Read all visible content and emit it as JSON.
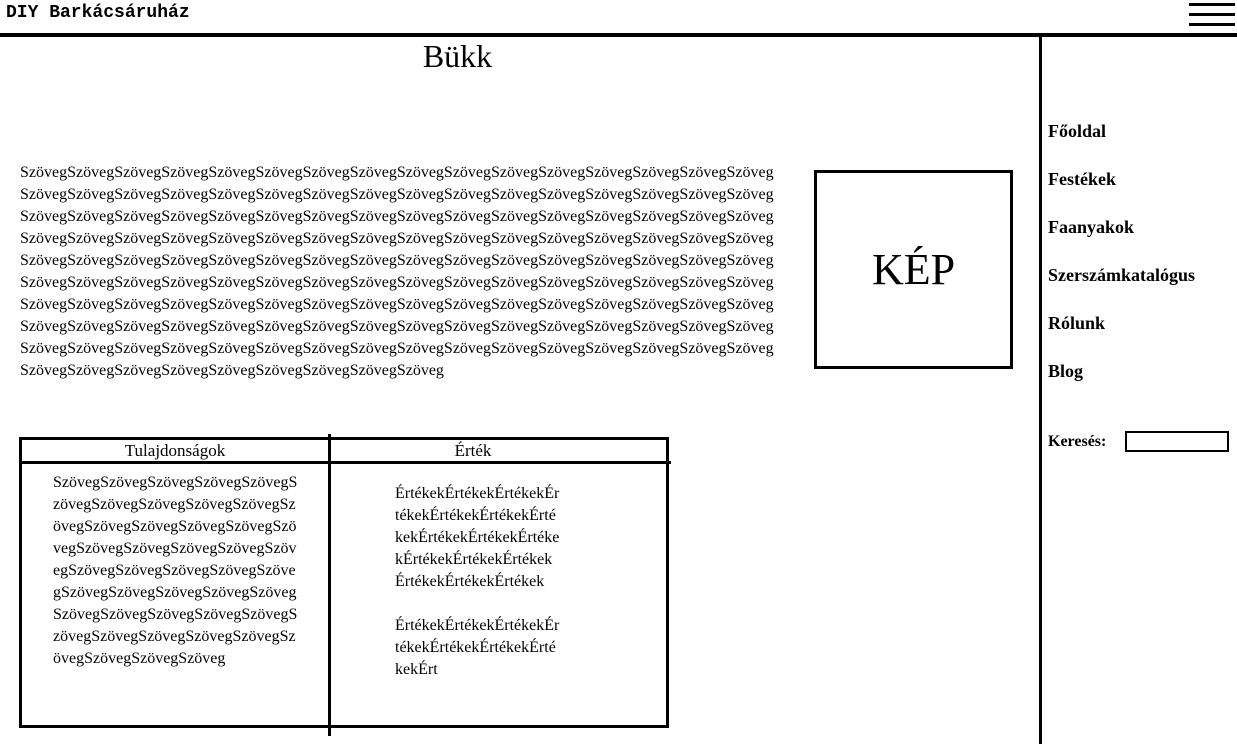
{
  "header": {
    "site_title": "DIY Barkácsáruház"
  },
  "main": {
    "title": "Bükk",
    "body_text": "SzövegSzövegSzövegSzövegSzövegSzövegSzövegSzövegSzövegSzövegSzövegSzövegSzövegSzövegSzövegSzövegSzövegSzövegSzövegSzövegSzövegSzövegSzövegSzövegSzövegSzövegSzövegSzövegSzövegSzövegSzövegSzövegSzövegSzövegSzövegSzövegSzövegSzövegSzövegSzövegSzövegSzövegSzövegSzövegSzövegSzövegSzövegSzövegSzövegSzövegSzövegSzövegSzövegSzövegSzövegSzövegSzövegSzövegSzövegSzövegSzövegSzövegSzövegSzövegSzövegSzövegSzövegSzövegSzövegSzövegSzövegSzövegSzövegSzövegSzövegSzövegSzövegSzövegSzövegSzövegSzövegSzövegSzövegSzövegSzövegSzövegSzövegSzövegSzövegSzövegSzövegSzövegSzövegSzövegSzövegSzövegSzövegSzövegSzövegSzövegSzövegSzövegSzövegSzövegSzövegSzövegSzövegSzövegSzövegSzövegSzövegSzövegSzövegSzövegSzövegSzövegSzövegSzövegSzövegSzövegSzövegSzövegSzövegSzövegSzövegSzövegSzövegSzövegSzövegSzövegSzövegSzövegSzövegSzövegSzövegSzövegSzövegSzövegSzövegSzövegSzövegSzövegSzövegSzövegSzövegSzövegSzövegSzövegSzövegSzövegSzövegSzövegSzöveg",
    "image_placeholder": "KÉP"
  },
  "table": {
    "headers": [
      "Tulajdonságok",
      "Érték"
    ],
    "cell_left": "SzövegSzövegSzövegSzövegSzövegSzövegSzövegSzövegSzövegSzövegSzövegSzövegSzövegSzövegSzövegSzövegSzövegSzövegSzövegSzövegSzövegSzövegSzövegSzövegSzövegSzövegSzövegSzövegSzövegSzövegSzövegSzövegSzövegSzövegSzövegSzövegSzövegSzövegSzövegSzövegSzövegSzövegSzövegSzövegSzöveg",
    "cell_right": [
      "ÉrtékekÉrtékekÉrtékekÉrtékekÉrtékekÉrtékekÉrtékekÉrtékekÉrtékekÉrtékekÉrtékekÉrtékekÉrtékekÉrtékekÉrtékekÉrtékek",
      "ÉrtékekÉrtékekÉrtékekÉrtékekÉrtékekÉrtékekÉrtékekÉrt"
    ]
  },
  "sidebar": {
    "nav_items": [
      "Főoldal",
      "Festékek",
      "Faanyakok",
      "Szerszámkatalógus",
      "Rólunk",
      "Blog"
    ],
    "search_label": "Keresés:",
    "search_value": ""
  }
}
